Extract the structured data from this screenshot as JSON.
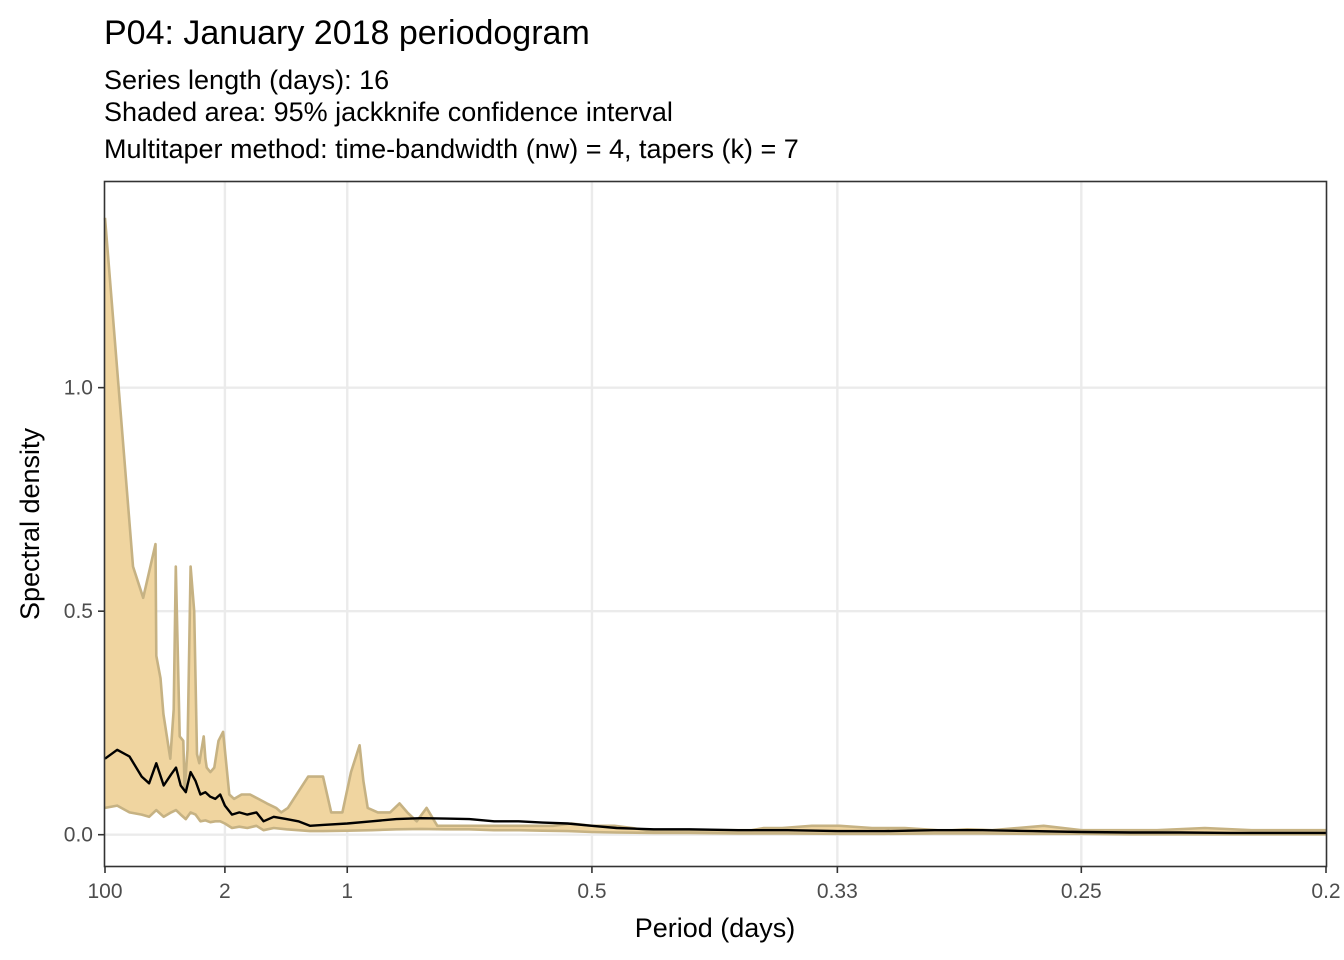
{
  "chart_data": {
    "type": "area",
    "title": "P04: January 2018 periodogram",
    "subtitle": [
      "Series length (days): 16",
      "Shaded area: 95% jackknife confidence interval",
      "Multitaper method: time-bandwidth (nw) = 4, tapers (k) = 7"
    ],
    "xlabel": "Period (days)",
    "ylabel": "Spectral density",
    "x_scale": "reciprocal",
    "x_ticks": [
      {
        "label": "100",
        "period": 100
      },
      {
        "label": "2",
        "period": 2
      },
      {
        "label": "1",
        "period": 1
      },
      {
        "label": "0.5",
        "period": 0.5
      },
      {
        "label": "0.33",
        "period": 0.333
      },
      {
        "label": "0.25",
        "period": 0.25
      },
      {
        "label": "0.2",
        "period": 0.2
      }
    ],
    "y_ticks": [
      {
        "label": "0.0",
        "value": 0.0
      },
      {
        "label": "0.5",
        "value": 0.5
      },
      {
        "label": "1.0",
        "value": 1.0
      }
    ],
    "ylim": [
      -0.07,
      1.46
    ],
    "grid": true,
    "colors": {
      "band_fill": "#f0d5a0",
      "band_line": "#c6b283",
      "estimate": "#000000"
    },
    "series": [
      {
        "role": "upper confidence bound",
        "period": [
          100,
          8.03,
          6.02,
          4.62,
          4.55,
          4.22,
          4.02,
          3.61,
          3.44,
          3.34,
          3.17,
          3.03,
          2.98,
          2.88,
          2.78,
          2.67,
          2.59,
          2.53,
          2.42,
          2.38,
          2.35,
          2.27,
          2.19,
          2.11,
          2.03,
          1.93,
          1.86,
          1.76,
          1.66,
          1.57,
          1.49,
          1.41,
          1.37,
          1.32,
          1.19,
          1.11,
          1.07,
          1.02,
          0.985,
          0.952,
          0.938,
          0.923,
          0.889,
          0.851,
          0.824,
          0.803,
          0.779,
          0.755,
          0.731,
          0.716,
          0.703,
          0.68,
          0.662,
          0.641,
          0.616,
          0.575,
          0.543,
          0.522,
          0.5,
          0.478,
          0.462,
          0.45,
          0.4,
          0.377,
          0.37,
          0.36,
          0.345,
          0.332,
          0.318,
          0.305,
          0.293,
          0.288,
          0.283,
          0.275,
          0.26,
          0.25,
          0.232,
          0.222,
          0.213,
          0.2
        ],
        "values": [
          1.38,
          0.6,
          0.53,
          0.65,
          0.4,
          0.35,
          0.27,
          0.17,
          0.28,
          0.6,
          0.22,
          0.21,
          0.1,
          0.19,
          0.6,
          0.5,
          0.18,
          0.16,
          0.22,
          0.17,
          0.15,
          0.14,
          0.15,
          0.21,
          0.23,
          0.09,
          0.08,
          0.09,
          0.09,
          0.08,
          0.07,
          0.06,
          0.05,
          0.06,
          0.13,
          0.13,
          0.05,
          0.05,
          0.14,
          0.2,
          0.12,
          0.06,
          0.05,
          0.05,
          0.07,
          0.05,
          0.03,
          0.06,
          0.02,
          0.02,
          0.02,
          0.02,
          0.02,
          0.02,
          0.02,
          0.02,
          0.02,
          0.025,
          0.02,
          0.02,
          0.015,
          0.01,
          0.01,
          0.01,
          0.015,
          0.015,
          0.02,
          0.02,
          0.015,
          0.015,
          0.01,
          0.01,
          0.012,
          0.01,
          0.02,
          0.01,
          0.01,
          0.015,
          0.01,
          0.01
        ]
      },
      {
        "role": "spectral density estimate",
        "period": [
          100,
          16.7,
          9.09,
          6.25,
          5.26,
          4.55,
          4.0,
          3.57,
          3.33,
          3.13,
          2.94,
          2.78,
          2.63,
          2.5,
          2.38,
          2.27,
          2.17,
          2.08,
          2.0,
          1.89,
          1.79,
          1.69,
          1.59,
          1.52,
          1.43,
          1.33,
          1.25,
          1.18,
          1.11,
          1.0,
          0.909,
          0.833,
          0.769,
          0.714,
          0.667,
          0.625,
          0.588,
          0.556,
          0.526,
          0.5,
          0.476,
          0.444,
          0.417,
          0.385,
          0.357,
          0.333,
          0.313,
          0.294,
          0.278,
          0.263,
          0.25,
          0.238,
          0.227,
          0.217,
          0.208,
          0.2
        ],
        "values": [
          0.17,
          0.19,
          0.175,
          0.13,
          0.115,
          0.16,
          0.11,
          0.135,
          0.15,
          0.11,
          0.095,
          0.14,
          0.12,
          0.09,
          0.095,
          0.085,
          0.08,
          0.09,
          0.065,
          0.045,
          0.05,
          0.045,
          0.05,
          0.03,
          0.04,
          0.035,
          0.03,
          0.02,
          0.022,
          0.025,
          0.03,
          0.035,
          0.037,
          0.036,
          0.035,
          0.03,
          0.03,
          0.027,
          0.025,
          0.02,
          0.015,
          0.012,
          0.012,
          0.01,
          0.01,
          0.008,
          0.008,
          0.01,
          0.01,
          0.008,
          0.006,
          0.005,
          0.005,
          0.004,
          0.004,
          0.004
        ]
      },
      {
        "role": "lower confidence bound",
        "period": [
          100,
          16.7,
          9.09,
          6.25,
          5.26,
          4.55,
          4.0,
          3.57,
          3.33,
          3.13,
          2.94,
          2.78,
          2.63,
          2.5,
          2.38,
          2.27,
          2.17,
          2.08,
          2.0,
          1.89,
          1.79,
          1.69,
          1.59,
          1.52,
          1.43,
          1.33,
          1.25,
          1.18,
          1.11,
          1.0,
          0.909,
          0.833,
          0.769,
          0.714,
          0.667,
          0.625,
          0.588,
          0.556,
          0.526,
          0.5,
          0.476,
          0.444,
          0.417,
          0.385,
          0.357,
          0.333,
          0.313,
          0.294,
          0.278,
          0.263,
          0.25,
          0.238,
          0.227,
          0.217,
          0.208,
          0.2
        ],
        "values": [
          0.06,
          0.065,
          0.05,
          0.045,
          0.04,
          0.055,
          0.04,
          0.05,
          0.055,
          0.045,
          0.035,
          0.05,
          0.045,
          0.03,
          0.032,
          0.028,
          0.03,
          0.03,
          0.025,
          0.015,
          0.018,
          0.015,
          0.02,
          0.01,
          0.015,
          0.012,
          0.01,
          0.008,
          0.008,
          0.009,
          0.01,
          0.012,
          0.013,
          0.012,
          0.012,
          0.01,
          0.01,
          0.009,
          0.008,
          0.006,
          0.005,
          0.004,
          0.004,
          0.003,
          0.003,
          0.002,
          0.002,
          0.003,
          0.003,
          0.002,
          0.002,
          0.001,
          0.001,
          0.001,
          0.001,
          0.001
        ]
      }
    ]
  }
}
